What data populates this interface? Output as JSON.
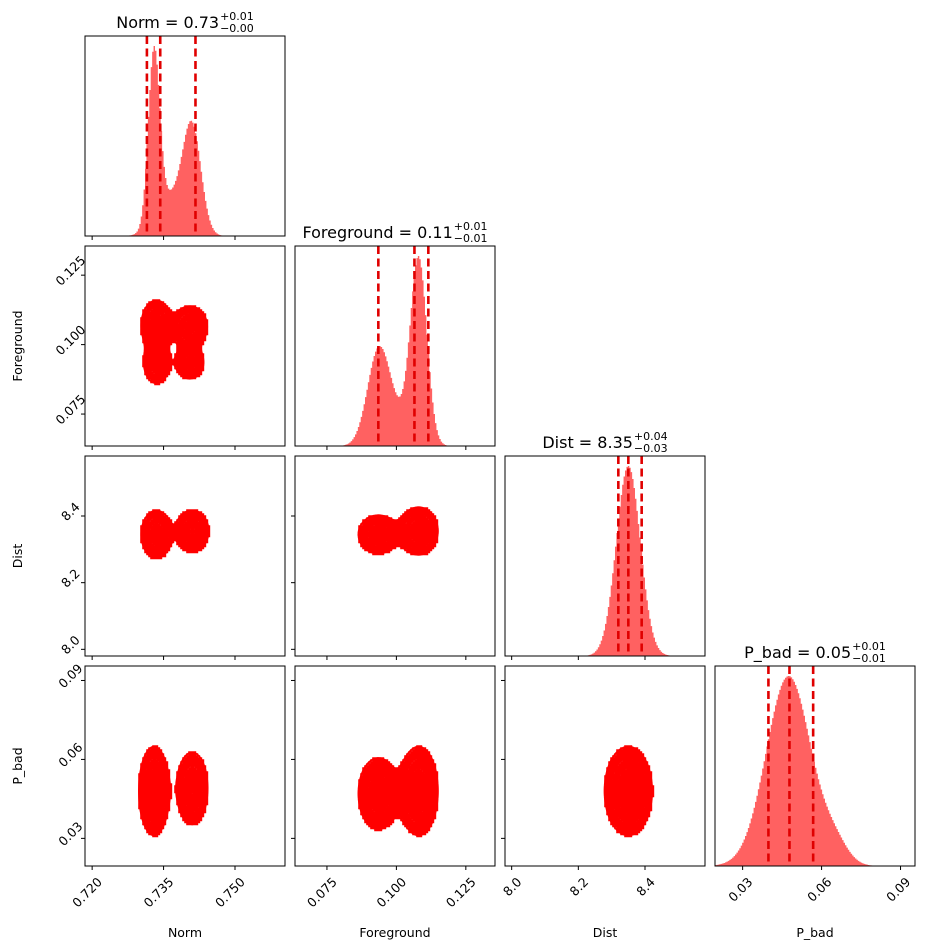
{
  "chart_data": {
    "type": "corner",
    "color": "#ff0000",
    "parameters": [
      {
        "name": "Norm",
        "range": [
          0.7185,
          0.7605
        ],
        "ticks": [
          "0.720",
          "0.735",
          "0.750"
        ],
        "tick_values": [
          0.72,
          0.735,
          0.75
        ],
        "title": {
          "main": "Norm = 0.73",
          "sup": "+0.01",
          "sub": "−0.00"
        },
        "quantiles": [
          0.7315,
          0.7343,
          0.7417
        ],
        "hist_peaks": [
          {
            "mu": 0.733,
            "sd": 0.0012,
            "h": 1.0
          },
          {
            "mu": 0.741,
            "sd": 0.0019,
            "h": 0.6
          },
          {
            "mu": 0.7365,
            "sd": 0.003,
            "h": 0.22
          }
        ]
      },
      {
        "name": "Foreground",
        "range": [
          0.0635,
          0.1355
        ],
        "ticks": [
          "0.075",
          "0.100",
          "0.125"
        ],
        "tick_values": [
          0.075,
          0.1,
          0.125
        ],
        "title": {
          "main": "Foreground = 0.11",
          "sup": "+0.01",
          "sub": "−0.01"
        },
        "quantiles": [
          0.0935,
          0.1065,
          0.1115
        ],
        "hist_peaks": [
          {
            "mu": 0.0935,
            "sd": 0.004,
            "h": 0.49
          },
          {
            "mu": 0.108,
            "sd": 0.003,
            "h": 1.0
          },
          {
            "mu": 0.0995,
            "sd": 0.004,
            "h": 0.12
          }
        ]
      },
      {
        "name": "Dist",
        "range": [
          7.98,
          8.58
        ],
        "ticks": [
          "8.0",
          "8.2",
          "8.4"
        ],
        "tick_values": [
          8.0,
          8.2,
          8.4
        ],
        "title": {
          "main": "Dist = 8.35",
          "sup": "+0.04",
          "sub": "−0.03"
        },
        "quantiles": [
          8.32,
          8.35,
          8.39
        ],
        "hist_peaks": [
          {
            "mu": 8.35,
            "sd": 0.036,
            "h": 1.0
          }
        ]
      },
      {
        "name": "P_bad",
        "range": [
          0.0195,
          0.0955
        ],
        "ticks": [
          "0.03",
          "0.06",
          "0.09"
        ],
        "tick_values": [
          0.03,
          0.06,
          0.09
        ],
        "title": {
          "main": "P_bad = 0.05",
          "sup": "+0.01",
          "sub": "−0.01"
        },
        "quantiles": [
          0.0398,
          0.0478,
          0.0568
        ],
        "hist_peaks": [
          {
            "mu": 0.0475,
            "sd": 0.0085,
            "h": 1.0
          },
          {
            "mu": 0.065,
            "sd": 0.005,
            "h": 0.1
          }
        ]
      }
    ],
    "pairs": [
      {
        "x": "Norm",
        "y": "Foreground",
        "modes": [
          {
            "cx": 0.7335,
            "cy": 0.107,
            "sx": 0.0016,
            "sy": 0.0045,
            "w": 1.0
          },
          {
            "cx": 0.7405,
            "cy": 0.1065,
            "sx": 0.002,
            "sy": 0.004,
            "w": 0.75
          },
          {
            "cx": 0.7335,
            "cy": 0.0935,
            "sx": 0.0016,
            "sy": 0.0045,
            "w": 0.55
          },
          {
            "cx": 0.7405,
            "cy": 0.0935,
            "sx": 0.002,
            "sy": 0.004,
            "w": 0.4
          }
        ]
      },
      {
        "x": "Norm",
        "y": "Dist",
        "modes": [
          {
            "cx": 0.7335,
            "cy": 8.345,
            "sx": 0.0016,
            "sy": 0.036,
            "w": 1.0
          },
          {
            "cx": 0.741,
            "cy": 8.355,
            "sx": 0.002,
            "sy": 0.036,
            "w": 0.62
          }
        ]
      },
      {
        "x": "Norm",
        "y": "P_bad",
        "modes": [
          {
            "cx": 0.733,
            "cy": 0.048,
            "sx": 0.0016,
            "sy": 0.0085,
            "w": 1.0
          },
          {
            "cx": 0.741,
            "cy": 0.049,
            "sx": 0.0019,
            "sy": 0.008,
            "w": 0.6
          }
        ]
      },
      {
        "x": "Foreground",
        "y": "Dist",
        "modes": [
          {
            "cx": 0.108,
            "cy": 8.355,
            "sx": 0.0035,
            "sy": 0.036,
            "w": 1.0
          },
          {
            "cx": 0.0935,
            "cy": 8.345,
            "sx": 0.0045,
            "sy": 0.036,
            "w": 0.5
          }
        ]
      },
      {
        "x": "Foreground",
        "y": "P_bad",
        "modes": [
          {
            "cx": 0.108,
            "cy": 0.048,
            "sx": 0.0035,
            "sy": 0.0085,
            "w": 1.0
          },
          {
            "cx": 0.0935,
            "cy": 0.047,
            "sx": 0.0045,
            "sy": 0.0085,
            "w": 0.5
          }
        ]
      },
      {
        "x": "Dist",
        "y": "P_bad",
        "modes": [
          {
            "cx": 8.35,
            "cy": 0.048,
            "sx": 0.036,
            "sy": 0.0085,
            "w": 1.0
          }
        ]
      }
    ],
    "contour_levels": [
      0.14,
      0.33,
      0.58,
      0.85
    ]
  }
}
